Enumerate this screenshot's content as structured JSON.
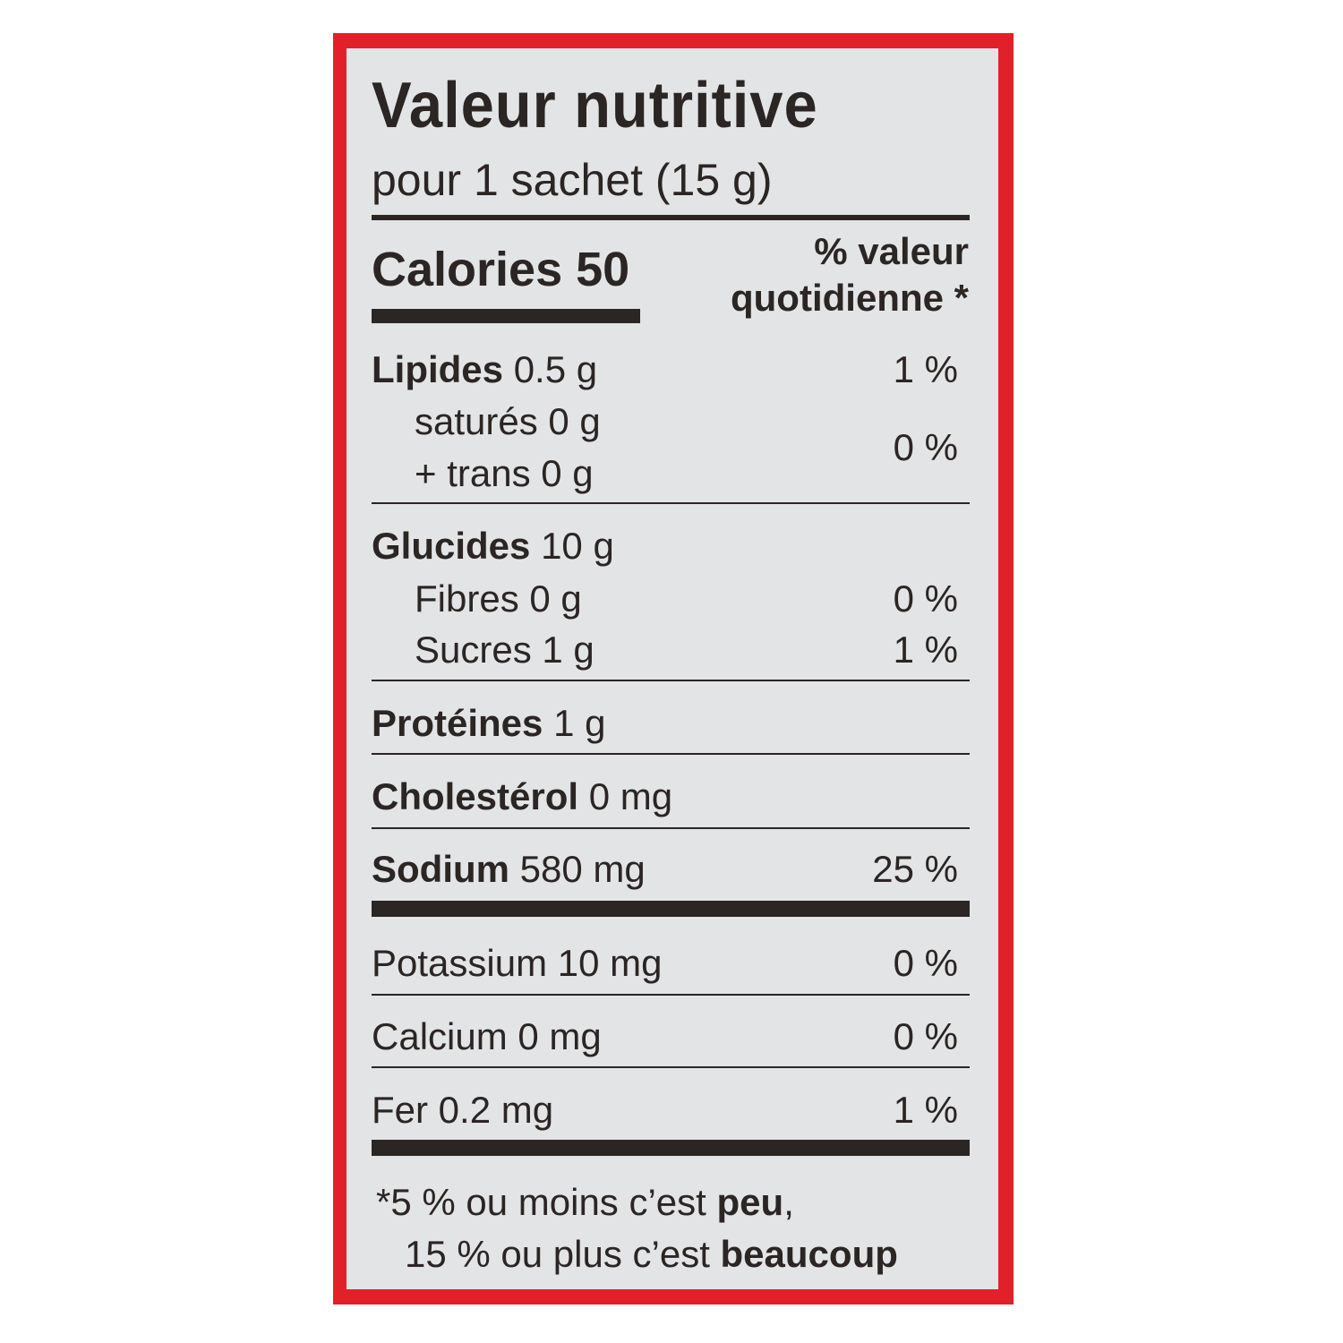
{
  "label": {
    "title": "Valeur nutritive",
    "serving": "pour 1 sachet (15 g)",
    "calories_label": "Calories",
    "calories_value": "50",
    "dv_header_line1": "% valeur",
    "dv_header_line2": "quotidienne *",
    "rows": {
      "lipides": {
        "name": "Lipides",
        "amount": "0.5 g",
        "dv": "1 %"
      },
      "satures": {
        "name": "saturés 0 g"
      },
      "trans": {
        "name": "+ trans 0 g"
      },
      "satures_trans_dv": "0 %",
      "glucides": {
        "name": "Glucides",
        "amount": "10 g"
      },
      "fibres": {
        "name": "Fibres 0 g",
        "dv": "0 %"
      },
      "sucres": {
        "name": "Sucres 1 g",
        "dv": "1 %"
      },
      "proteines": {
        "name": "Protéines",
        "amount": "1 g"
      },
      "cholesterol": {
        "name": "Cholestérol",
        "amount": "0 mg"
      },
      "sodium": {
        "name": "Sodium",
        "amount": "580 mg",
        "dv": "25 %"
      },
      "potassium": {
        "name": "Potassium 10 mg",
        "dv": "0 %"
      },
      "calcium": {
        "name": "Calcium 0 mg",
        "dv": "0 %"
      },
      "fer": {
        "name": "Fer 0.2 mg",
        "dv": "1 %"
      }
    },
    "footnote": {
      "line1_pre": "*5 % ou moins c’est ",
      "line1_bold": "peu",
      "line1_post": ",",
      "line2_pre": "15 % ou plus c’est ",
      "line2_bold": "beaucoup"
    }
  },
  "colors": {
    "border": "#e2202a",
    "panel": "#e3e4e6",
    "ink": "#2b2523"
  }
}
